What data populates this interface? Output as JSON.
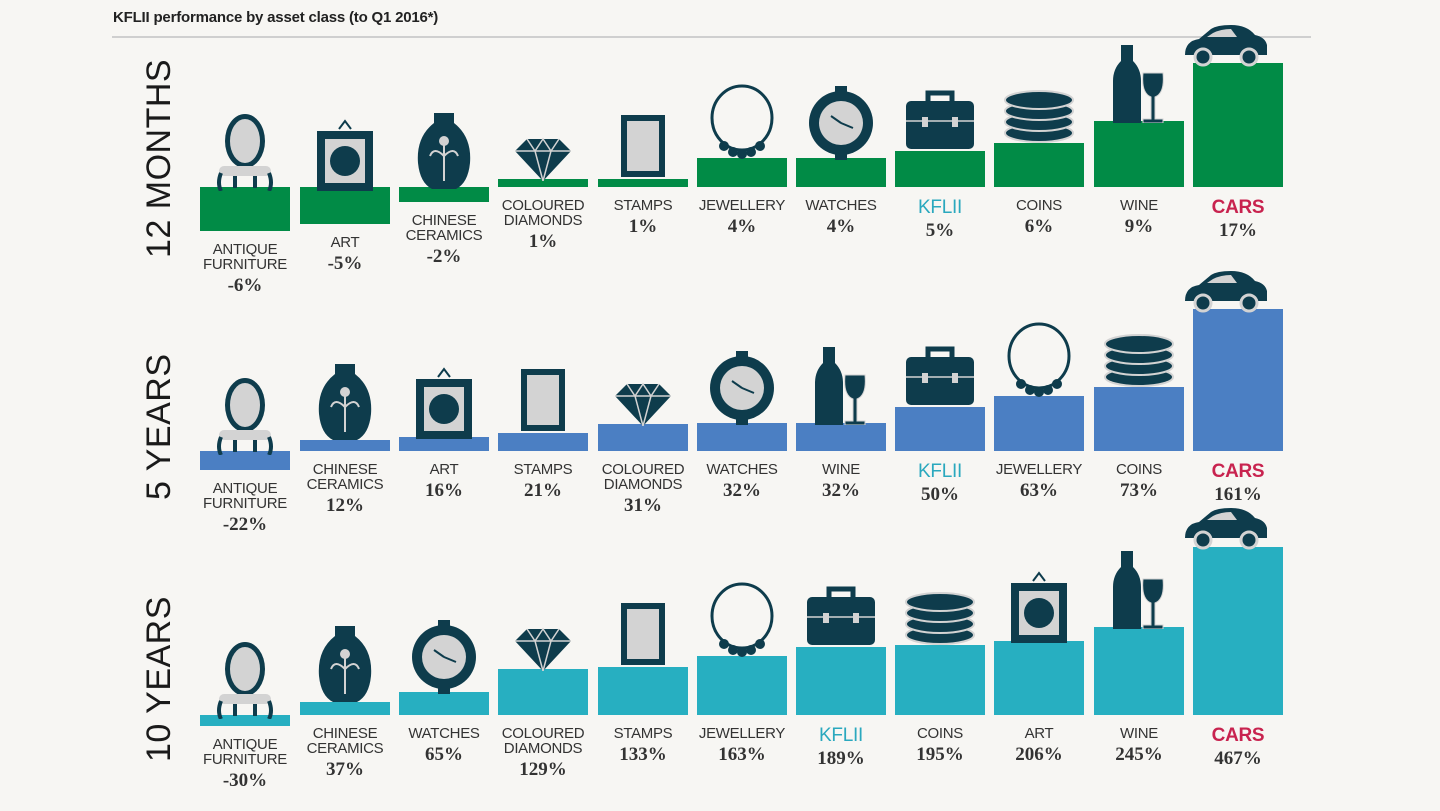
{
  "title": "KFLII performance by asset class (to Q1 2016*)",
  "colors": {
    "icon": "#0e3c4c",
    "icon_light": "#d3d3d3",
    "kflii_label": "#2aa8be",
    "cars_label": "#c8234f"
  },
  "chart_data": [
    {
      "type": "bar",
      "panel_label": "12 MONTHS",
      "bar_color": "#018b46",
      "categories": [
        "ANTIQUE FURNITURE",
        "ART",
        "CHINESE CERAMICS",
        "COLOURED DIAMONDS",
        "STAMPS",
        "JEWELLERY",
        "WATCHES",
        "KFLII",
        "COINS",
        "WINE",
        "CARS"
      ],
      "icons": [
        "chair-icon",
        "art-frame-icon",
        "vase-icon",
        "diamond-icon",
        "stamp-icon",
        "necklace-icon",
        "watch-icon",
        "briefcase-icon",
        "coins-icon",
        "wine-icon",
        "car-icon"
      ],
      "values": [
        -6,
        -5,
        -2,
        1,
        1,
        4,
        4,
        5,
        6,
        9,
        17
      ],
      "value_labels": [
        "-6%",
        "-5%",
        "-2%",
        "1%",
        "1%",
        "4%",
        "4%",
        "5%",
        "6%",
        "9%",
        "17%"
      ]
    },
    {
      "type": "bar",
      "panel_label": "5 YEARS",
      "bar_color": "#4b7fc3",
      "categories": [
        "ANTIQUE FURNITURE",
        "CHINESE CERAMICS",
        "ART",
        "STAMPS",
        "COLOURED DIAMONDS",
        "WATCHES",
        "WINE",
        "KFLII",
        "JEWELLERY",
        "COINS",
        "CARS"
      ],
      "icons": [
        "chair-icon",
        "vase-icon",
        "art-frame-icon",
        "stamp-icon",
        "diamond-icon",
        "watch-icon",
        "wine-icon",
        "briefcase-icon",
        "necklace-icon",
        "coins-icon",
        "car-icon"
      ],
      "values": [
        -22,
        12,
        16,
        21,
        31,
        32,
        32,
        50,
        63,
        73,
        161
      ],
      "value_labels": [
        "-22%",
        "12%",
        "16%",
        "21%",
        "31%",
        "32%",
        "32%",
        "50%",
        "63%",
        "73%",
        "161%"
      ]
    },
    {
      "type": "bar",
      "panel_label": "10 YEARS",
      "bar_color": "#27afc1",
      "categories": [
        "ANTIQUE FURNITURE",
        "CHINESE CERAMICS",
        "WATCHES",
        "COLOURED DIAMONDS",
        "STAMPS",
        "JEWELLERY",
        "KFLII",
        "COINS",
        "ART",
        "WINE",
        "CARS"
      ],
      "icons": [
        "chair-icon",
        "vase-icon",
        "watch-icon",
        "diamond-icon",
        "stamp-icon",
        "necklace-icon",
        "briefcase-icon",
        "coins-icon",
        "art-frame-icon",
        "wine-icon",
        "car-icon"
      ],
      "values": [
        -30,
        37,
        65,
        129,
        133,
        163,
        189,
        195,
        206,
        245,
        467
      ],
      "value_labels": [
        "-30%",
        "37%",
        "65%",
        "129%",
        "133%",
        "163%",
        "189%",
        "195%",
        "206%",
        "245%",
        "467%"
      ]
    }
  ]
}
